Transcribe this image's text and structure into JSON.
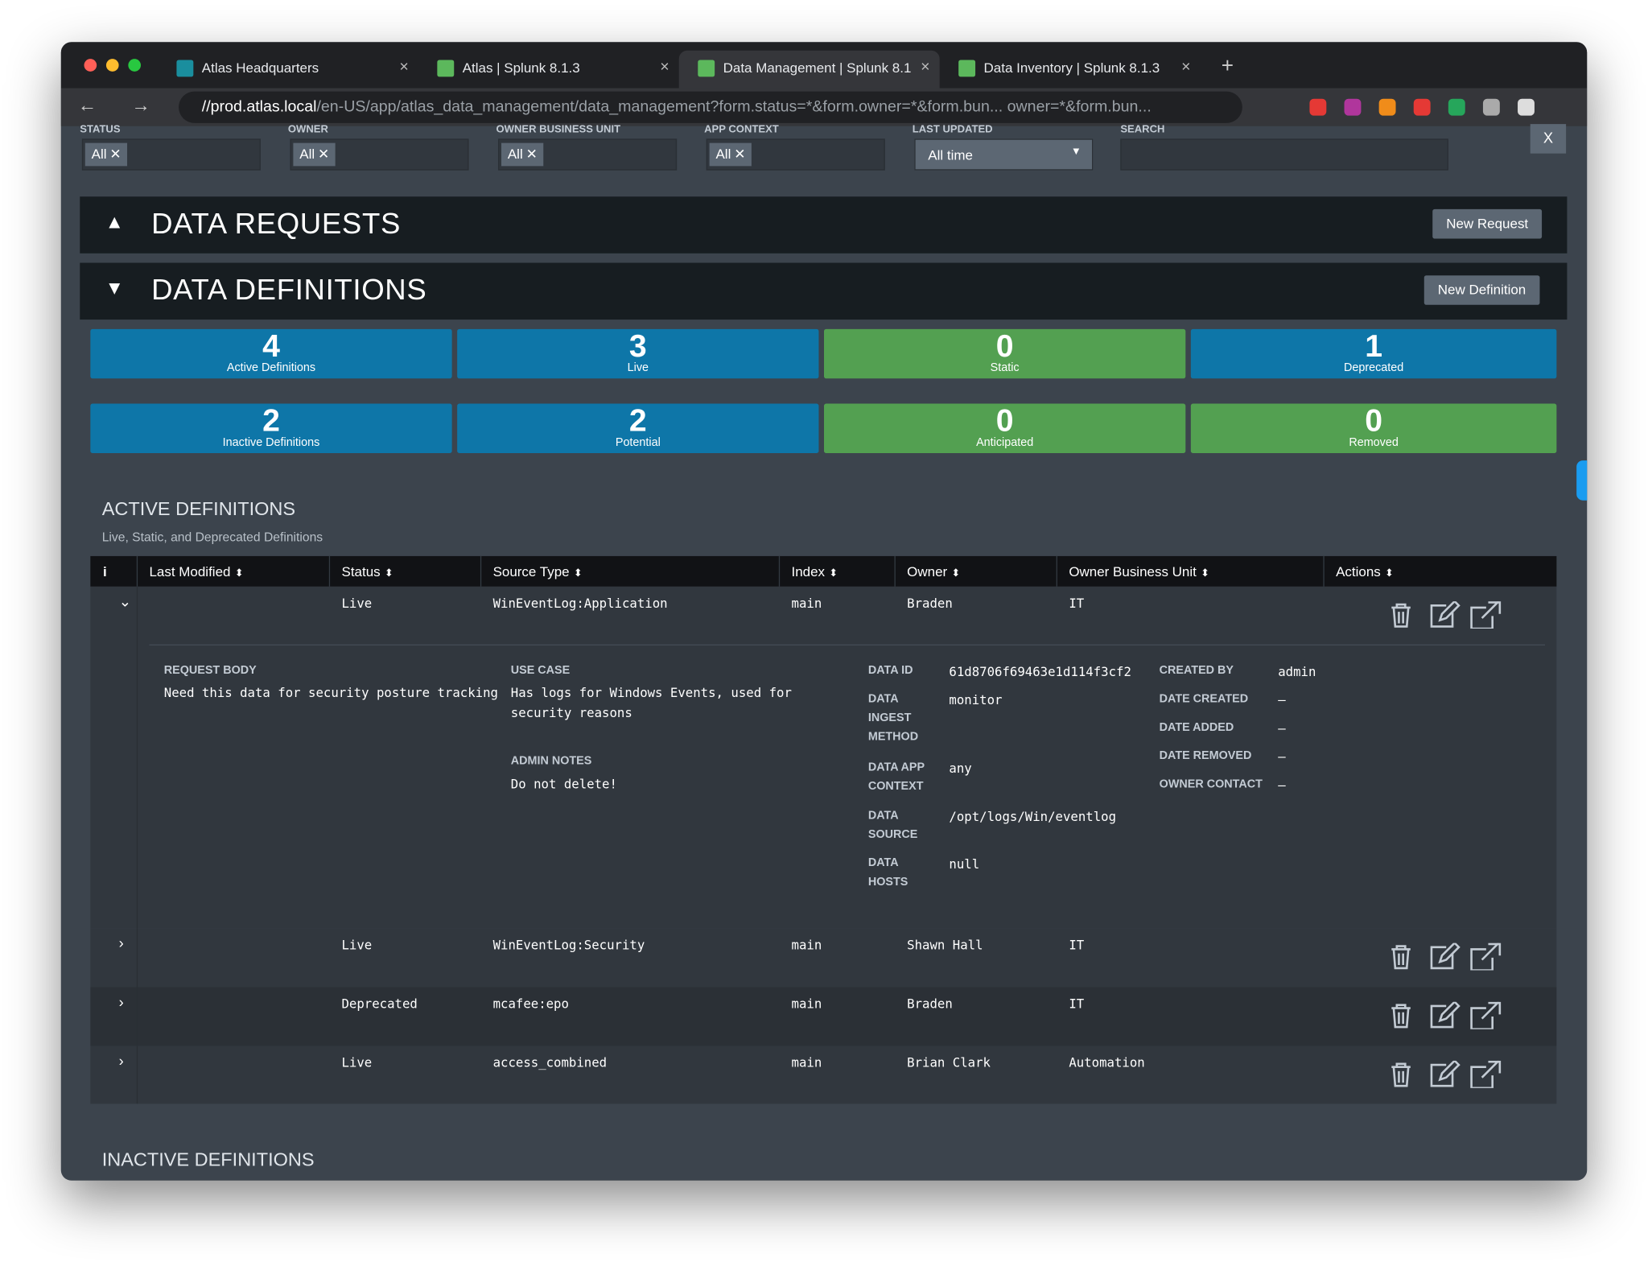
{
  "browser": {
    "tabs": [
      "Atlas Headquarters",
      "Atlas | Splunk 8.1.3",
      "Data Management | Splunk 8.1",
      "Data Inventory | Splunk 8.1.3"
    ],
    "url_host": "//prod.atlas.local",
    "url_path": "/en-US/app/atlas_data_management/data_management?form.status=*&form.owner=*&form.bun... owner=*&form.bun..."
  },
  "filters": [
    {
      "label": "STATUS",
      "value": "All"
    },
    {
      "label": "OWNER",
      "value": "All"
    },
    {
      "label": "OWNER BUSINESS UNIT",
      "value": "All"
    },
    {
      "label": "APP CONTEXT",
      "value": "All"
    },
    {
      "label": "LAST UPDATED",
      "value": "All time"
    },
    {
      "label": "SEARCH"
    }
  ],
  "close_label": "X",
  "requests": {
    "title": "DATA REQUESTS",
    "button": "New Request"
  },
  "definitions": {
    "title": "DATA DEFINITIONS",
    "button": "New Definition"
  },
  "stats": [
    {
      "value": 4,
      "label": "Active Definitions",
      "color": "#0e76a8"
    },
    {
      "value": 3,
      "label": "Live",
      "color": "#0e76a8"
    },
    {
      "value": 0,
      "label": "Static",
      "color": "#53a051"
    },
    {
      "value": 1,
      "label": "Deprecated",
      "color": "#0e76a8"
    },
    {
      "value": 2,
      "label": "Inactive Definitions",
      "color": "#0e76a8"
    },
    {
      "value": 2,
      "label": "Potential",
      "color": "#0e76a8"
    },
    {
      "value": 0,
      "label": "Anticipated",
      "color": "#53a051"
    },
    {
      "value": 0,
      "label": "Removed",
      "color": "#53a051"
    }
  ],
  "active": {
    "title": "ACTIVE DEFINITIONS",
    "subtitle": "Live, Static, and Deprecated Definitions",
    "columns": [
      "i",
      "Last Modified",
      "Status",
      "Source Type",
      "Index",
      "Owner",
      "Owner Business Unit",
      "Actions"
    ],
    "rows": [
      [
        "Live",
        "WinEventLog:Application",
        "main",
        "Braden",
        "IT"
      ],
      [
        "Live",
        "WinEventLog:Security",
        "main",
        "Shawn Hall",
        "IT"
      ],
      [
        "Deprecated",
        "mcafee:epo",
        "main",
        "Braden",
        "IT"
      ],
      [
        "Live",
        "access_combined",
        "main",
        "Brian Clark",
        "Automation"
      ]
    ],
    "detail": {
      "request_body": {
        "label": "REQUEST BODY",
        "value": "Need this data for security posture tracking"
      },
      "use_case": {
        "label": "USE CASE",
        "value": "Has logs for Windows Events, used for security reasons"
      },
      "admin_notes": {
        "label": "ADMIN NOTES",
        "value": "Do not delete!"
      },
      "fields": [
        {
          "label": "DATA ID",
          "value": "61d8706f69463e1d114f3cf2"
        },
        {
          "label": "DATA INGEST METHOD",
          "value": "monitor"
        },
        {
          "label": "DATA APP CONTEXT",
          "value": "any"
        },
        {
          "label": "DATA SOURCE",
          "value": "/opt/logs/Win/eventlog"
        },
        {
          "label": "DATA HOSTS",
          "value": "null"
        }
      ],
      "meta": [
        {
          "label": "CREATED BY",
          "value": "admin"
        },
        {
          "label": "DATE CREATED",
          "value": "–"
        },
        {
          "label": "DATE ADDED",
          "value": "–"
        },
        {
          "label": "DATE REMOVED",
          "value": "–"
        },
        {
          "label": "OWNER CONTACT",
          "value": "–"
        }
      ]
    }
  },
  "inactive_title": "INACTIVE DEFINITIONS"
}
